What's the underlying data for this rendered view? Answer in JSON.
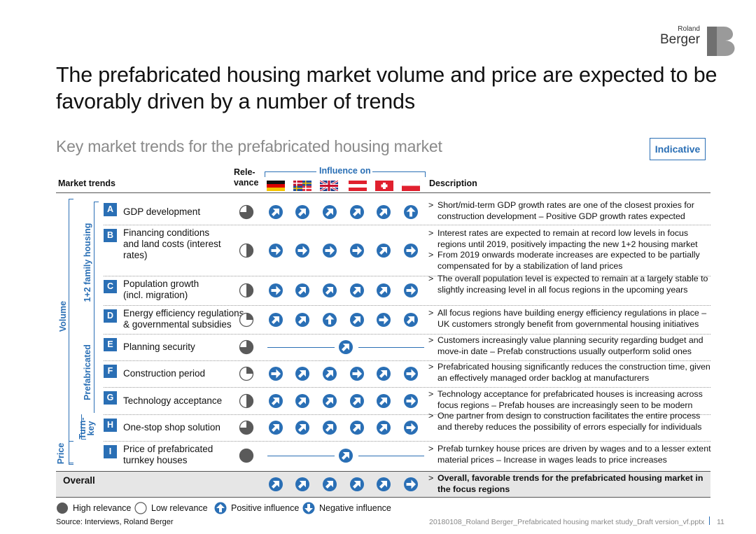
{
  "logo": {
    "line1": "Roland",
    "line2": "Berger"
  },
  "title": "The prefabricated housing market volume and price are expected to be favorably driven by a number of trends",
  "subtitle": "Key market trends for the prefabricated housing market",
  "badge": "Indicative",
  "header": {
    "market_trends": "Market trends",
    "relevance_line1": "Rele-",
    "relevance_line2": "vance",
    "influence_on": "Influence on",
    "description": "Description",
    "flags": [
      "germany-flag",
      "nordics-flag",
      "uk-flag",
      "austria-flag",
      "switzerland-flag",
      "poland-flag"
    ]
  },
  "groups": {
    "volume": "Volume",
    "family": "1+2 family housing",
    "prefabricated": "Prefabricated",
    "turnkey_line1": "Turn-",
    "turnkey_line2": "key",
    "price": "Price"
  },
  "trends": [
    {
      "letter": "A",
      "name": [
        "GDP development"
      ],
      "relevance": 0.75,
      "influence": [
        "positive-diag",
        "positive-diag",
        "positive-diag",
        "positive-diag",
        "positive-diag",
        "positive-up"
      ],
      "description": [
        "Short/mid-term GDP growth rates are one of the closest proxies for construction development – Positive GDP growth rates expected"
      ]
    },
    {
      "letter": "B",
      "name": [
        "Financing conditions",
        "and land costs (interest",
        "rates)"
      ],
      "relevance": 0.5,
      "influence": [
        "neutral",
        "neutral",
        "neutral",
        "neutral",
        "positive-diag",
        "neutral"
      ],
      "description": [
        "Interest rates are expected to remain at record low levels in focus regions until 2019, positively impacting the new 1+2 housing market",
        "From 2019 onwards moderate increases are expected to be partially compensated for by a stabilization of land prices"
      ]
    },
    {
      "letter": "C",
      "name": [
        "Population growth",
        "(incl. migration)"
      ],
      "relevance": 0.5,
      "influence": [
        "neutral",
        "positive-diag",
        "positive-diag",
        "positive-diag",
        "positive-diag",
        "neutral"
      ],
      "description": [
        "The overall population level is expected to remain at a largely stable to slightly increasing level in all focus regions in the upcoming years"
      ]
    },
    {
      "letter": "D",
      "name": [
        "Energy efficiency regulations",
        "& governmental subsidies"
      ],
      "relevance": 0.25,
      "influence": [
        "positive-diag",
        "positive-diag",
        "positive-up",
        "positive-diag",
        "neutral",
        "positive-diag"
      ],
      "description": [
        "All focus regions have building energy efficiency regulations in place – UK customers strongly benefit from governmental housing initiatives"
      ]
    },
    {
      "letter": "E",
      "name": [
        "Planning security"
      ],
      "relevance": 0.75,
      "influence_all": "positive-diag",
      "description": [
        "Customers increasingly value planning security regarding budget and move-in date – Prefab constructions usually outperform solid ones"
      ]
    },
    {
      "letter": "F",
      "name": [
        "Construction period"
      ],
      "relevance": 0.25,
      "influence": [
        "neutral",
        "positive-diag",
        "positive-diag",
        "neutral",
        "positive-diag",
        "neutral"
      ],
      "description": [
        "Prefabricated housing significantly reduces the construction time, given an effectively managed order backlog at manufacturers"
      ]
    },
    {
      "letter": "G",
      "name": [
        "Technology acceptance"
      ],
      "relevance": 0.5,
      "influence": [
        "positive-diag",
        "positive-diag",
        "positive-diag",
        "positive-diag",
        "positive-diag",
        "neutral"
      ],
      "description": [
        "Technology acceptance for prefabricated houses is increasing across focus regions – Prefab houses are increasingly seen to be modern"
      ]
    },
    {
      "letter": "H",
      "name": [
        "One-stop shop solution"
      ],
      "relevance": 0.75,
      "influence": [
        "positive-diag",
        "positive-diag",
        "positive-diag",
        "positive-diag",
        "positive-diag",
        "neutral"
      ],
      "description": [
        "One partner from design to construction facilitates the entire process and thereby reduces the possibility of errors especially for individuals"
      ]
    },
    {
      "letter": "I",
      "name": [
        "Price of prefabricated",
        "turnkey houses"
      ],
      "relevance": 1.0,
      "influence_all": "positive-diag",
      "description": [
        "Prefab turnkey house prices are driven by wages and to a lesser extent material prices – Increase in wages leads to price increases"
      ]
    }
  ],
  "overall": {
    "label": "Overall",
    "influence": [
      "positive-diag",
      "positive-diag",
      "positive-diag",
      "positive-diag",
      "positive-diag",
      "neutral"
    ],
    "description": "Overall, favorable trends for the prefabricated housing market in the focus regions"
  },
  "legend": {
    "high": "High relevance",
    "low": "Low relevance",
    "positive": "Positive influence",
    "negative": "Negative influence"
  },
  "source": "Source: Interviews, Roland Berger",
  "footer_file": "20180108_Roland Berger_Prefabricated housing market study_Draft version_vf.pptx",
  "page_number": "11",
  "colors": {
    "accent": "#2a6fb5",
    "relevance": "#5a5a5a",
    "overall_bg": "#e6e6e6"
  }
}
